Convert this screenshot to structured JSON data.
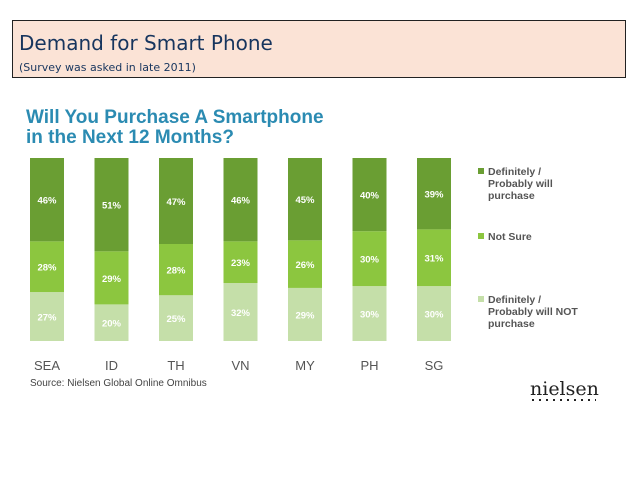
{
  "header": {
    "title": "Demand for Smart Phone",
    "subtitle": "(Survey was asked in late 2011)"
  },
  "chart_data": {
    "type": "bar",
    "stacked": true,
    "title": [
      "Will You Purchase A Smartphone",
      "in the Next 12 Months?"
    ],
    "categories": [
      "SEA",
      "ID",
      "TH",
      "VN",
      "MY",
      "PH",
      "SG"
    ],
    "series": [
      {
        "name": "Definitely / Probably will NOT purchase",
        "legend_lines": [
          "Definitely /",
          "Probably will NOT",
          "purchase"
        ],
        "color": "#c5dfa9",
        "values": [
          27,
          20,
          25,
          32,
          29,
          30,
          30
        ]
      },
      {
        "name": "Not Sure",
        "legend_lines": [
          "Not Sure"
        ],
        "color": "#8cc63f",
        "values": [
          28,
          29,
          28,
          23,
          26,
          30,
          31
        ]
      },
      {
        "name": "Definitely / Probably will purchase",
        "legend_lines": [
          "Definitely /",
          "Probably will",
          "purchase"
        ],
        "color": "#6a9e33",
        "values": [
          46,
          51,
          47,
          46,
          45,
          40,
          39
        ]
      }
    ],
    "value_suffix": "%",
    "legend_position": "right"
  },
  "source": "Source: Nielsen Global Online Omnibus",
  "logo": "nielsen",
  "colors": {
    "accent": "#2b8bb2",
    "text": "#17355e"
  }
}
